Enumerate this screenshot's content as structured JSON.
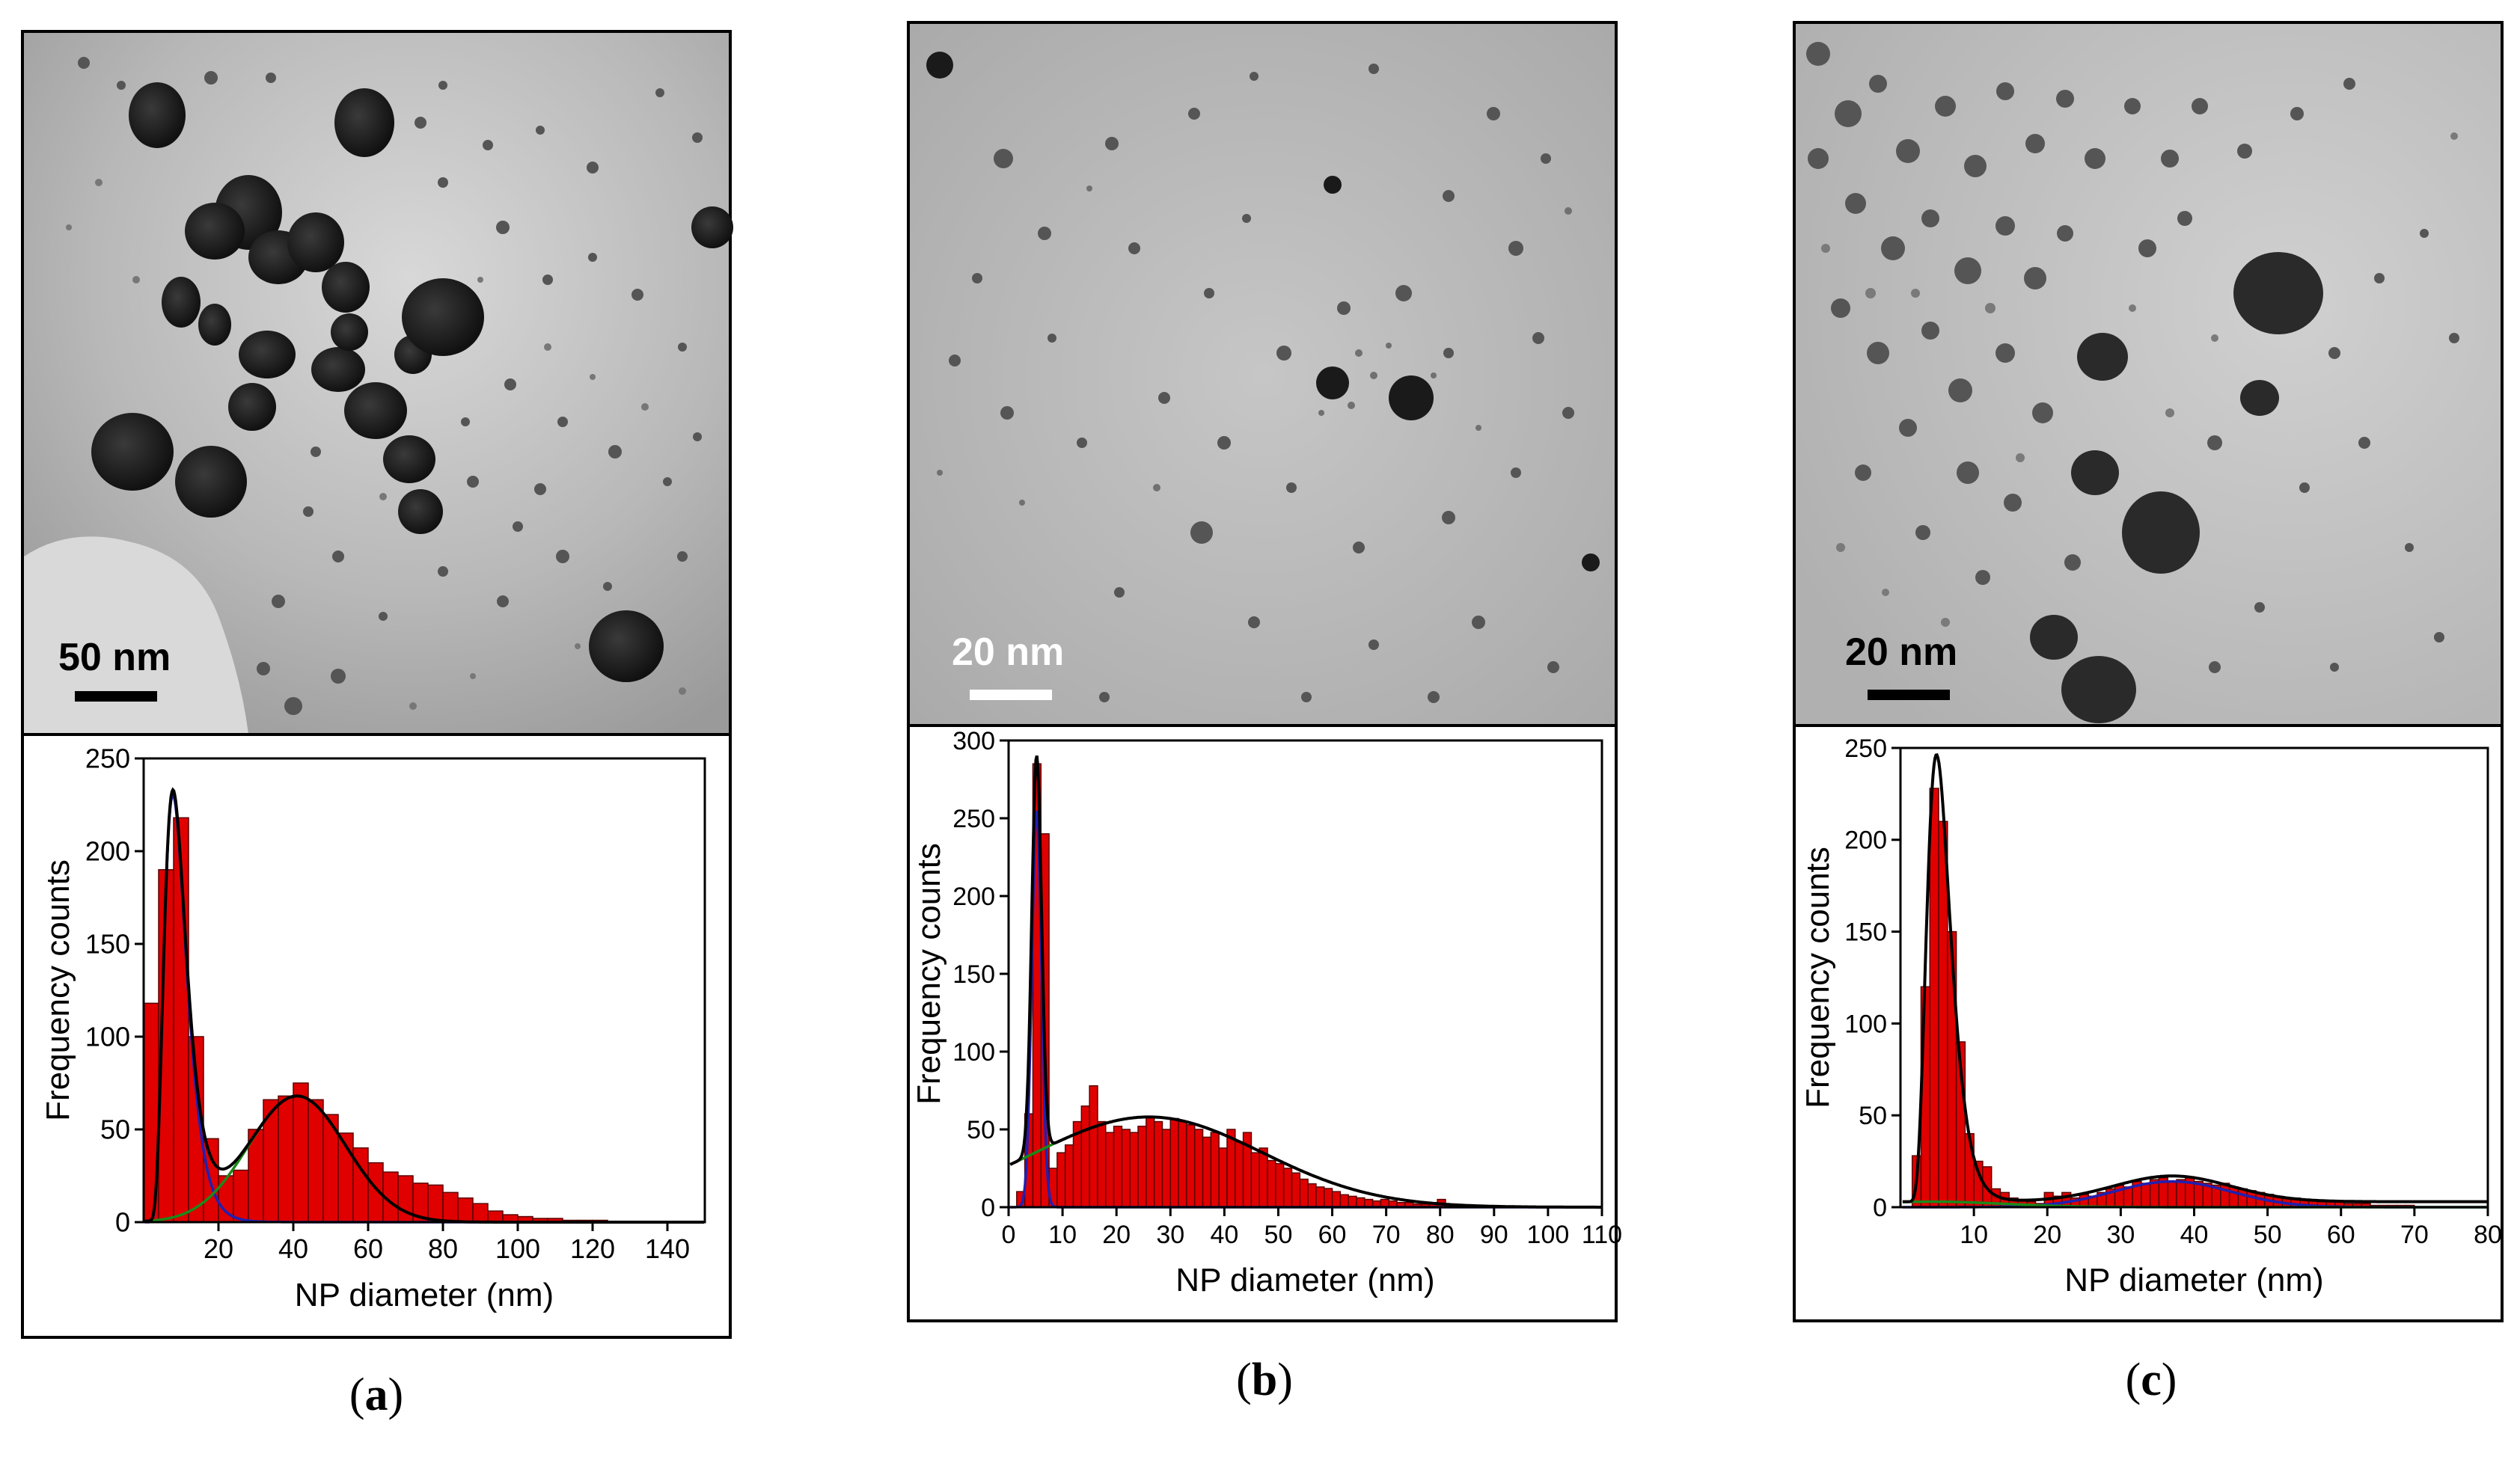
{
  "panels": [
    {
      "id": "a",
      "label": "a",
      "scale_bar": "50 nm",
      "chart_data": {
        "type": "bar",
        "xlabel": "NP diameter (nm)",
        "ylabel": "Frequency counts",
        "xlim": [
          0,
          150
        ],
        "ylim": [
          0,
          250
        ],
        "xticks": [
          20,
          40,
          60,
          80,
          100,
          120,
          140
        ],
        "yticks": [
          0,
          50,
          100,
          150,
          200,
          250
        ],
        "bin_width": 4,
        "bin_starts": [
          0,
          4,
          8,
          12,
          16,
          20,
          24,
          28,
          32,
          36,
          40,
          44,
          48,
          52,
          56,
          60,
          64,
          68,
          72,
          76,
          80,
          84,
          88,
          92,
          96,
          100,
          104,
          108,
          112,
          116,
          120,
          124,
          128,
          132,
          136,
          140,
          144
        ],
        "values": [
          118,
          190,
          218,
          100,
          45,
          25,
          28,
          50,
          66,
          68,
          75,
          66,
          58,
          48,
          40,
          32,
          27,
          25,
          21,
          20,
          16,
          13,
          10,
          6,
          4,
          3,
          2,
          2,
          1,
          1,
          1,
          0,
          0,
          0,
          0,
          0,
          0
        ],
        "fits": [
          {
            "color": "#2020b0",
            "curve": "lognormal",
            "peak_x": 8,
            "peak_y": 230,
            "mu": 2.2,
            "sigma": 0.38
          },
          {
            "color": "#1a8a1a",
            "curve": "gauss",
            "center": 41,
            "amp": 68,
            "sigma": 13
          },
          {
            "color": "#000000",
            "curve": "sum"
          }
        ]
      }
    },
    {
      "id": "b",
      "label": "b",
      "scale_bar": "20 nm",
      "chart_data": {
        "type": "bar",
        "xlabel": "NP diameter (nm)",
        "ylabel": "Frequency counts",
        "xlim": [
          0,
          110
        ],
        "ylim": [
          0,
          300
        ],
        "xticks": [
          0,
          10,
          20,
          30,
          40,
          50,
          60,
          70,
          80,
          90,
          100,
          110
        ],
        "yticks": [
          0,
          50,
          100,
          150,
          200,
          250,
          300
        ],
        "bin_width": 1.5,
        "bin_starts": [
          1.5,
          3,
          4.5,
          6,
          7.5,
          9,
          10.5,
          12,
          13.5,
          15,
          16.5,
          18,
          19.5,
          21,
          22.5,
          24,
          25.5,
          27,
          28.5,
          30,
          31.5,
          33,
          34.5,
          36,
          37.5,
          39,
          40.5,
          42,
          43.5,
          45,
          46.5,
          48,
          49.5,
          51,
          52.5,
          54,
          55.5,
          57,
          58.5,
          60,
          61.5,
          63,
          64.5,
          66,
          67.5,
          69,
          70.5,
          72,
          73.5,
          75,
          76.5,
          78,
          79.5,
          81,
          82.5
        ],
        "values": [
          10,
          60,
          285,
          240,
          25,
          35,
          40,
          55,
          65,
          78,
          55,
          48,
          52,
          50,
          48,
          52,
          58,
          55,
          50,
          57,
          55,
          53,
          50,
          45,
          48,
          38,
          50,
          42,
          48,
          35,
          38,
          30,
          28,
          25,
          22,
          18,
          15,
          13,
          12,
          10,
          8,
          7,
          6,
          5,
          4,
          5,
          4,
          3,
          3,
          2,
          2,
          3,
          5,
          2,
          1
        ],
        "fits": [
          {
            "color": "#2020b0",
            "curve": "gauss",
            "center": 5.2,
            "amp": 255,
            "sigma": 0.9
          },
          {
            "color": "#1a8a1a",
            "curve": "gauss",
            "center": 26,
            "amp": 58,
            "sigma": 21
          },
          {
            "color": "#000000",
            "curve": "sum"
          }
        ]
      }
    },
    {
      "id": "c",
      "label": "c",
      "scale_bar": "20 nm",
      "chart_data": {
        "type": "bar",
        "xlabel": "NP diameter (nm)",
        "ylabel": "Frequency counts",
        "xlim": [
          0,
          80
        ],
        "ylim": [
          0,
          250
        ],
        "xticks": [
          10,
          20,
          30,
          40,
          50,
          60,
          70,
          80
        ],
        "yticks": [
          0,
          50,
          100,
          150,
          200,
          250
        ],
        "bin_width": 1.2,
        "bin_starts": [
          1.6,
          2.8,
          4,
          5.2,
          6.4,
          7.6,
          8.8,
          10,
          11.2,
          12.4,
          13.6,
          14.8,
          16,
          17.2,
          18.4,
          19.6,
          20.8,
          22,
          23.2,
          24.4,
          25.6,
          26.8,
          28,
          29.2,
          30.4,
          31.6,
          32.8,
          34,
          35.2,
          36.4,
          37.6,
          38.8,
          40,
          41.2,
          42.4,
          43.6,
          44.8,
          46,
          47.2,
          48.4,
          49.6,
          50.8,
          52,
          53.2,
          54.4,
          55.6,
          56.8,
          58,
          59.2,
          60.4,
          61.6,
          62.8,
          64,
          65.2,
          66.4,
          67.6,
          68.8,
          70,
          71.2,
          72.4
        ],
        "values": [
          28,
          120,
          228,
          210,
          150,
          90,
          40,
          25,
          22,
          10,
          8,
          5,
          4,
          3,
          2,
          8,
          6,
          8,
          5,
          7,
          6,
          8,
          10,
          12,
          11,
          14,
          13,
          15,
          16,
          14,
          15,
          16,
          14,
          13,
          12,
          13,
          11,
          10,
          9,
          8,
          7,
          6,
          5,
          5,
          4,
          4,
          3,
          3,
          3,
          2,
          2,
          2,
          1,
          1,
          1,
          1,
          1,
          0,
          0,
          0
        ],
        "fits": [
          {
            "color": "#2020b0",
            "curve": "gauss",
            "center": 37,
            "amp": 14,
            "sigma": 8
          },
          {
            "color": "#1a8a1a",
            "curve": "gauss",
            "center": 4.2,
            "amp": 3,
            "sigma": 10
          },
          {
            "color": "#000000",
            "curve": "sum_lognormal",
            "peak_x": 5,
            "peak_y": 243,
            "mu": 1.7,
            "sigma": 0.33,
            "base": 3,
            "g2": {
              "center": 37,
              "amp": 14,
              "sigma": 8
            }
          }
        ]
      }
    }
  ]
}
